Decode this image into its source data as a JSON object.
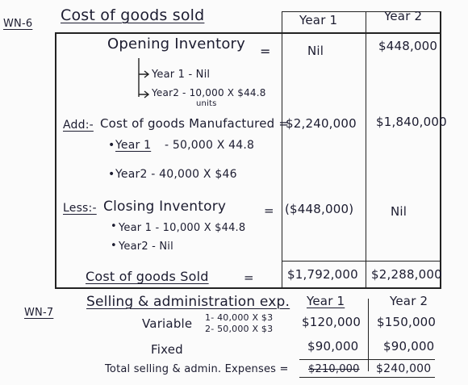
{
  "wn6": {
    "label": "WN-6",
    "title": "Cost of goods sold",
    "col_year1": "Year 1",
    "col_year2": "Year 2",
    "opening": {
      "label": "Opening Inventory",
      "eq": "=",
      "year1_value": "Nil",
      "year2_value": "$448,000",
      "sub1": "Year 1 - Nil",
      "sub2": "Year2 - 10,000 X $44.8",
      "sub2_units": "units"
    },
    "add": {
      "prefix": "Add:-",
      "label": "Cost of goods Manufactured =",
      "year1_value": "$2,240,000",
      "year2_value": "$1,840,000",
      "sub1_year": "Year 1",
      "sub1_rest": "- 50,000 X 44.8",
      "sub2": "Year2 - 40,000 X $46"
    },
    "less": {
      "prefix": "Less:-",
      "label": "Closing Inventory",
      "eq": "=",
      "year1_value": "($448,000)",
      "year2_value": "Nil",
      "sub1": "Year 1 - 10,000 X $44.8",
      "sub2": "Year2 - Nil"
    },
    "total": {
      "label": "Cost of goods Sold",
      "eq": "=",
      "year1_value": "$1,792,000",
      "year2_value": "$2,288,000"
    }
  },
  "wn7": {
    "label": "WN-7",
    "title": "Selling & administration exp.",
    "col_year1": "Year 1",
    "col_year2": "Year 2",
    "variable": {
      "label": "Variable",
      "note1": "1- 40,000 X $3",
      "note2": "2- 50,000 X $3",
      "year1_value": "$120,000",
      "year2_value": "$150,000"
    },
    "fixed": {
      "label": "Fixed",
      "year1_value": "$90,000",
      "year2_value": "$90,000"
    },
    "total": {
      "label": "Total selling & admin. Expenses =",
      "year1_value": "$210,000",
      "year2_value": "$240,000"
    }
  }
}
